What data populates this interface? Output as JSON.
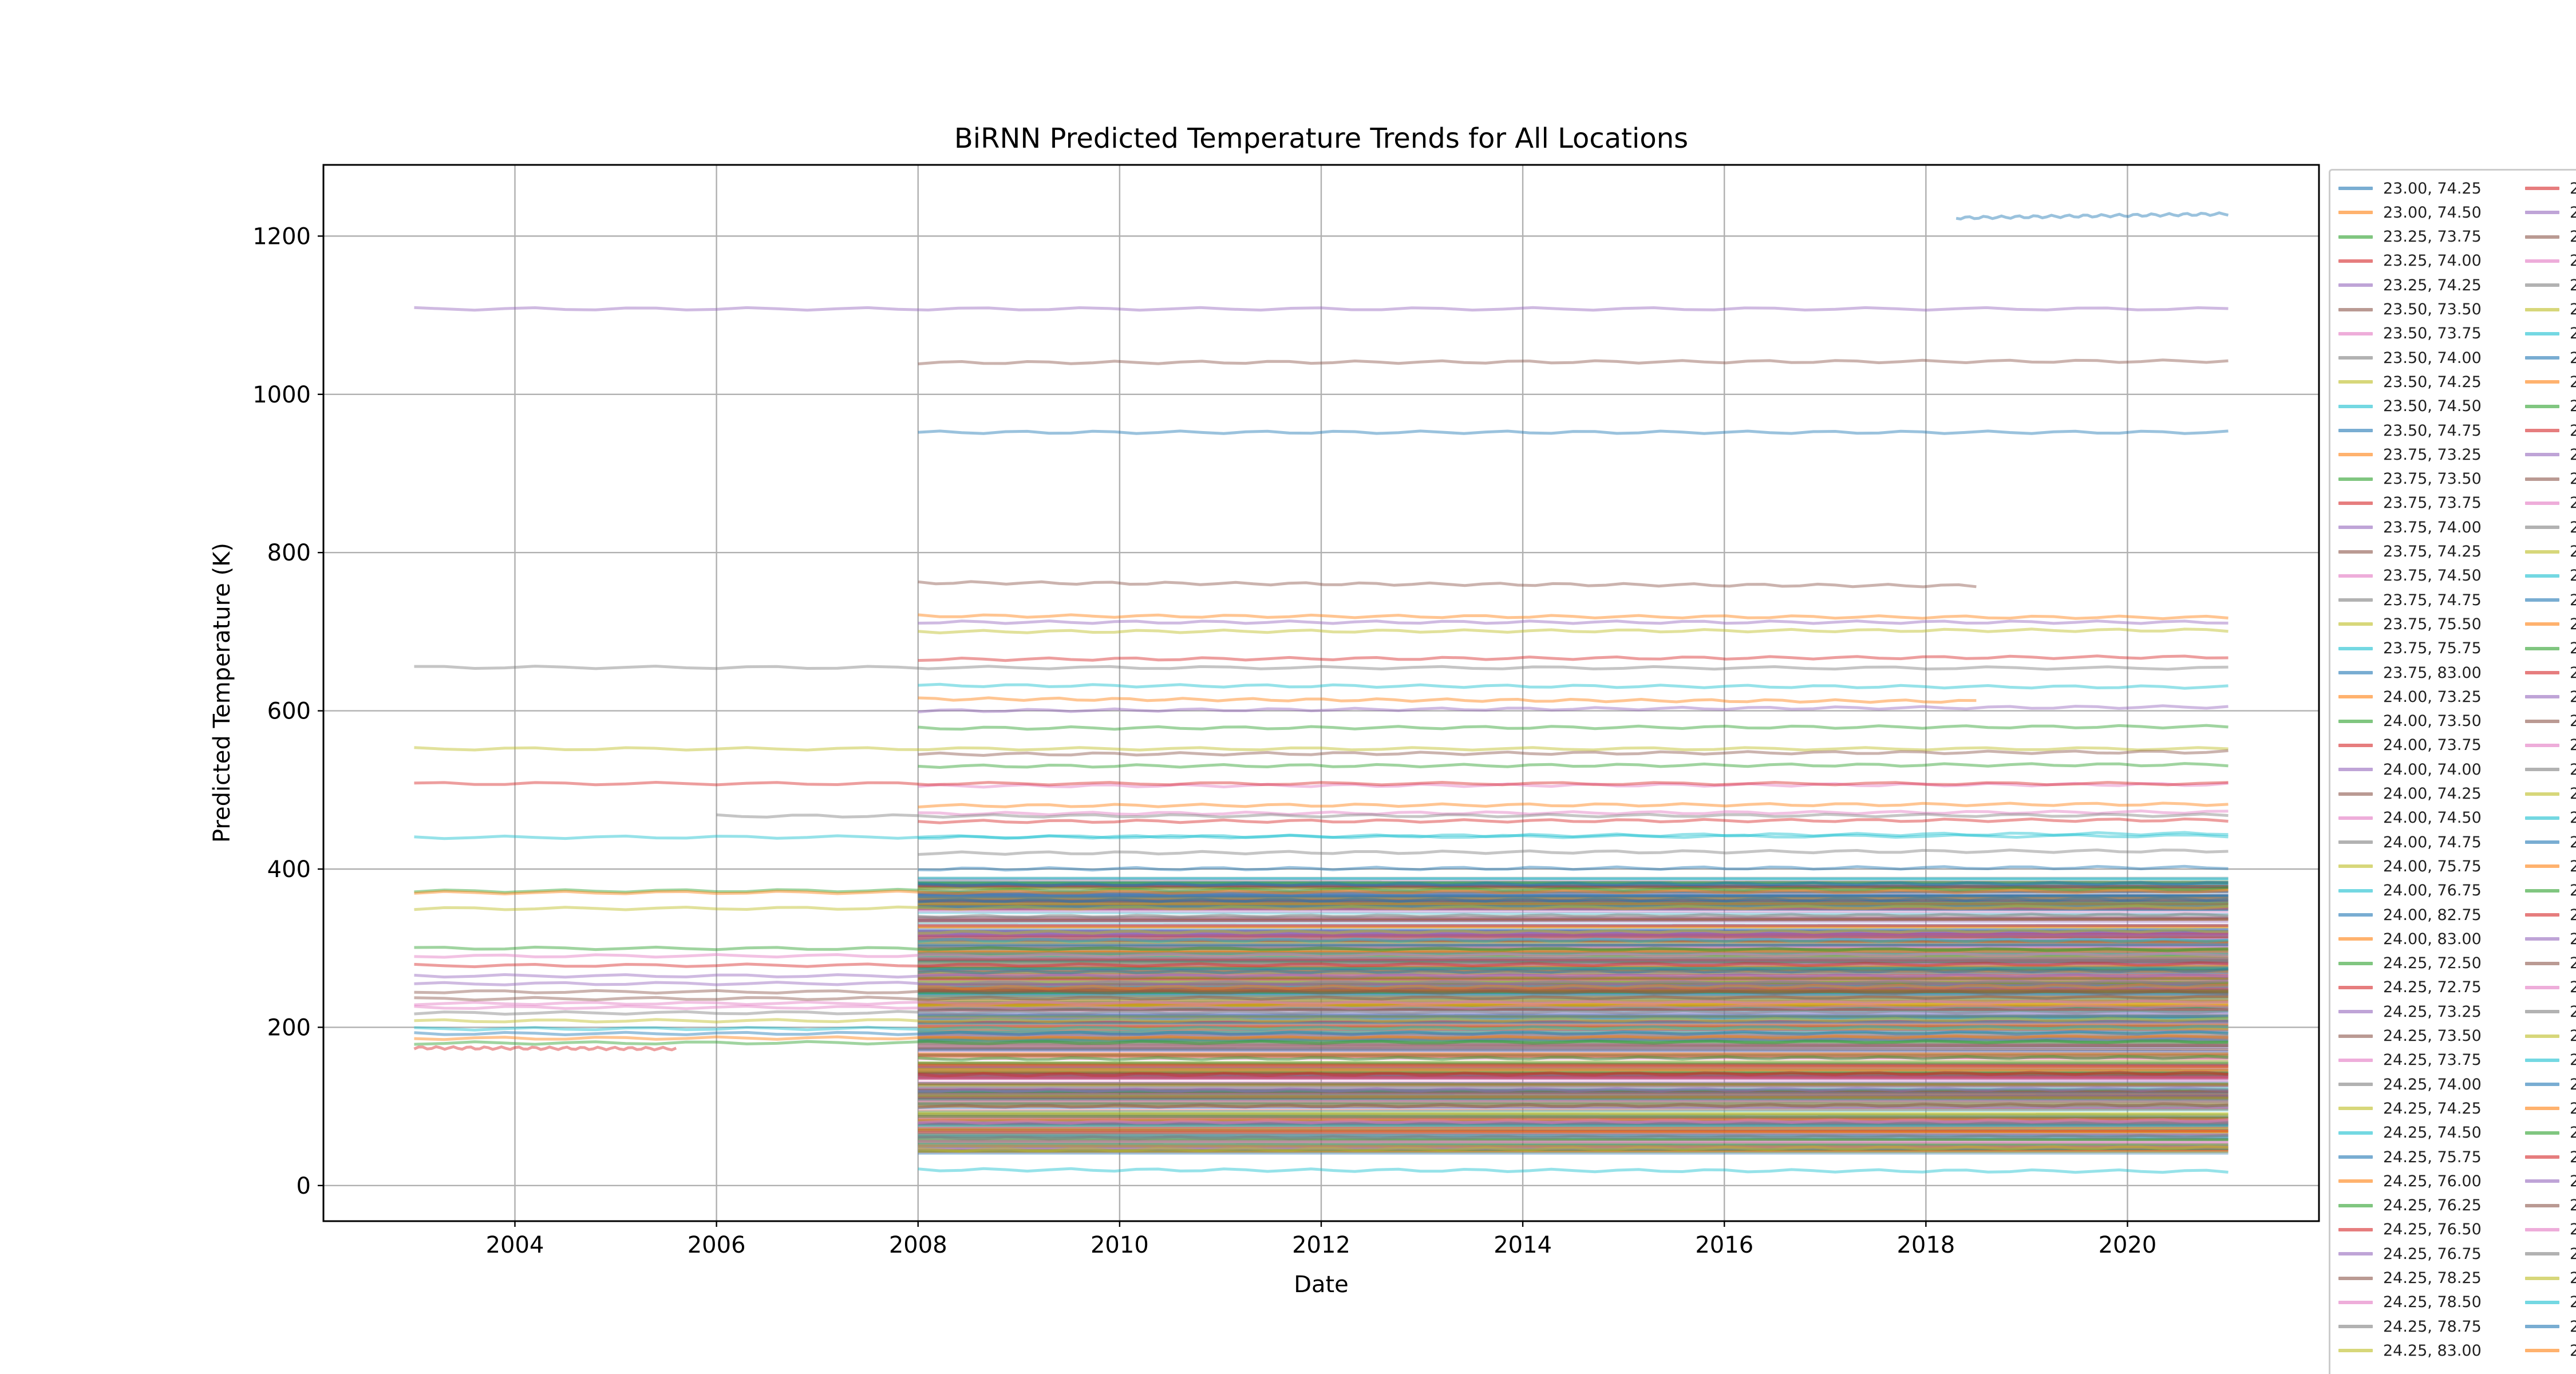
{
  "chart_data": {
    "type": "line",
    "title": "BiRNN Predicted Temperature Trends for All Locations",
    "xlabel": "Date",
    "ylabel": "Predicted Temperature (K)",
    "xlim": [
      2002.1,
      2021.9
    ],
    "ylim": [
      -45,
      1290
    ],
    "x_ticks": [
      {
        "value": 2004,
        "label": "2004"
      },
      {
        "value": 2006,
        "label": "2006"
      },
      {
        "value": 2008,
        "label": "2008"
      },
      {
        "value": 2010,
        "label": "2010"
      },
      {
        "value": 2012,
        "label": "2012"
      },
      {
        "value": 2014,
        "label": "2014"
      },
      {
        "value": 2016,
        "label": "2016"
      },
      {
        "value": 2018,
        "label": "2018"
      },
      {
        "value": 2020,
        "label": "2020"
      }
    ],
    "y_ticks": [
      {
        "value": 0,
        "label": "0"
      },
      {
        "value": 200,
        "label": "200"
      },
      {
        "value": 400,
        "label": "400"
      },
      {
        "value": 600,
        "label": "600"
      },
      {
        "value": 800,
        "label": "800"
      },
      {
        "value": 1000,
        "label": "1000"
      },
      {
        "value": 1200,
        "label": "1200"
      }
    ],
    "grid": true,
    "legend_position": "right, outside plot (clipped)",
    "colors": [
      "#1f77b4",
      "#ff7f0e",
      "#2ca02c",
      "#d62728",
      "#9467bd",
      "#8c564b",
      "#e377c2",
      "#7f7f7f",
      "#bcbd22",
      "#17becf"
    ],
    "series": [
      {
        "x": [
          2008.0,
          2021.0
        ],
        "y": [
          952,
          952
        ]
      },
      {
        "x": [
          2008.0,
          2018.5
        ],
        "y": [
          615,
          612
        ]
      },
      {
        "x": [
          2008.0,
          2021.0
        ],
        "y": [
          578,
          580
        ]
      },
      {
        "x": [
          2008.0,
          2021.0
        ],
        "y": [
          460,
          462
        ]
      },
      {
        "x": [
          2008.0,
          2021.0
        ],
        "y": [
          712,
          712
        ]
      },
      {
        "x": [
          2008.0,
          2021.0
        ],
        "y": [
          1040,
          1042
        ]
      },
      {
        "x": [
          2008.0,
          2021.0
        ],
        "y": [
          505,
          507
        ]
      },
      {
        "x": [
          2003.0,
          2021.0
        ],
        "y": [
          655,
          654
        ]
      },
      {
        "x": [
          2003.0,
          2021.0
        ],
        "y": [
          552,
          552
        ]
      },
      {
        "x": [
          2003.0,
          2021.0
        ],
        "y": [
          440,
          442
        ]
      },
      {
        "x": [
          2008.0,
          2021.0
        ],
        "y": [
          400,
          402
        ]
      },
      {
        "x": [
          2008.0,
          2021.0
        ],
        "y": [
          480,
          482
        ]
      },
      {
        "x": [
          2003.0,
          2021.0
        ],
        "y": [
          372,
          375
        ]
      },
      {
        "x": [
          2003.0,
          2021.0
        ],
        "y": [
          508,
          508
        ]
      },
      {
        "x": [
          2003.0,
          2021.0
        ],
        "y": [
          1108,
          1108
        ]
      },
      {
        "x": [
          2008.0,
          2018.5
        ],
        "y": [
          762,
          758
        ]
      },
      {
        "x": [
          2003.0,
          2021.0
        ],
        "y": [
          290,
          292
        ]
      },
      {
        "x": [
          2008.0,
          2021.0
        ],
        "y": [
          420,
          423
        ]
      },
      {
        "x": [
          2003.0,
          2021.0
        ],
        "y": [
          350,
          352
        ]
      },
      {
        "x": [
          2008.0,
          2021.0
        ],
        "y": [
          632,
          630
        ]
      },
      {
        "x": [
          2008.0,
          2021.0
        ],
        "y": [
          380,
          382
        ]
      },
      {
        "x": [
          2008.0,
          2021.0
        ],
        "y": [
          720,
          718
        ]
      },
      {
        "x": [
          2008.0,
          2021.0
        ],
        "y": [
          530,
          532
        ]
      },
      {
        "x": [
          2008.0,
          2021.0
        ],
        "y": [
          665,
          668
        ]
      },
      {
        "x": [
          2008.0,
          2021.0
        ],
        "y": [
          600,
          605
        ]
      },
      {
        "x": [
          2008.0,
          2021.0
        ],
        "y": [
          545,
          548
        ]
      },
      {
        "x": [
          2008.0,
          2021.0
        ],
        "y": [
          470,
          472
        ]
      },
      {
        "x": [
          2006.0,
          2021.0
        ],
        "y": [
          467,
          468
        ]
      },
      {
        "x": [
          2008.0,
          2021.0
        ],
        "y": [
          700,
          702
        ]
      },
      {
        "x": [
          2008.0,
          2021.0
        ],
        "y": [
          440,
          445
        ]
      },
      {
        "x": [
          2008.0,
          2021.0
        ],
        "y": [
          360,
          362
        ]
      },
      {
        "x": [
          2003.0,
          2021.0
        ],
        "y": [
          370,
          372
        ]
      },
      {
        "x": [
          2003.0,
          2021.0
        ],
        "y": [
          300,
          298
        ]
      },
      {
        "x": [
          2003.0,
          2021.0
        ],
        "y": [
          278,
          280
        ]
      },
      {
        "x": [
          2003.0,
          2021.0
        ],
        "y": [
          265,
          265
        ]
      },
      {
        "x": [
          2003.0,
          2021.0
        ],
        "y": [
          245,
          244
        ]
      },
      {
        "x": [
          2003.0,
          2021.0
        ],
        "y": [
          230,
          232
        ]
      },
      {
        "x": [
          2003.0,
          2021.0
        ],
        "y": [
          218,
          220
        ]
      },
      {
        "x": [
          2003.0,
          2021.0
        ],
        "y": [
          208,
          210
        ]
      },
      {
        "x": [
          2003.0,
          2021.0
        ],
        "y": [
          198,
          200
        ]
      },
      {
        "x": [
          2003.0,
          2021.0
        ],
        "y": [
          192,
          193
        ]
      },
      {
        "x": [
          2003.0,
          2021.0
        ],
        "y": [
          186,
          188
        ]
      },
      {
        "x": [
          2003.0,
          2021.0
        ],
        "y": [
          180,
          182
        ]
      },
      {
        "x": [
          2003.0,
          2005.6
        ],
        "y": [
          174,
          173
        ]
      },
      {
        "x": [
          2003.0,
          2021.0
        ],
        "y": [
          255,
          257
        ]
      },
      {
        "x": [
          2003.0,
          2021.0
        ],
        "y": [
          236,
          238
        ]
      },
      {
        "x": [
          2003.0,
          2021.0
        ],
        "y": [
          225,
          226
        ]
      },
      {
        "x": [
          2008.0,
          2021.0
        ],
        "y": [
          340,
          342
        ]
      },
      {
        "x": [
          2008.0,
          2021.0
        ],
        "y": [
          320,
          322
        ]
      },
      {
        "x": [
          2008.0,
          2021.0
        ],
        "y": [
          310,
          310
        ]
      },
      {
        "x": [
          2008.0,
          2021.0
        ],
        "y": [
          270,
          272
        ]
      },
      {
        "x": [
          2008.0,
          2021.0
        ],
        "y": [
          250,
          252
        ]
      },
      {
        "x": [
          2008.0,
          2021.0
        ],
        "y": [
          160,
          162
        ]
      },
      {
        "x": [
          2008.0,
          2021.0
        ],
        "y": [
          140,
          142
        ]
      },
      {
        "x": [
          2008.0,
          2021.0
        ],
        "y": [
          120,
          122
        ]
      },
      {
        "x": [
          2008.0,
          2021.0
        ],
        "y": [
          100,
          102
        ]
      },
      {
        "x": [
          2008.0,
          2021.0
        ],
        "y": [
          80,
          82
        ]
      },
      {
        "x": [
          2008.0,
          2021.0
        ],
        "y": [
          60,
          62
        ]
      },
      {
        "x": [
          2008.0,
          2021.0
        ],
        "y": [
          45,
          48
        ]
      },
      {
        "x": [
          2008.0,
          2021.0
        ],
        "y": [
          20,
          18
        ]
      },
      {
        "x": [
          2018.3,
          2021.0
        ],
        "y": [
          1223,
          1228
        ]
      }
    ]
  },
  "legend": {
    "items": [
      {
        "label": "23.00, 74.25",
        "color": "#1f77b4"
      },
      {
        "label": "23.00, 74.50",
        "color": "#ff7f0e"
      },
      {
        "label": "23.25, 73.75",
        "color": "#2ca02c"
      },
      {
        "label": "23.25, 74.00",
        "color": "#d62728"
      },
      {
        "label": "23.25, 74.25",
        "color": "#9467bd"
      },
      {
        "label": "23.50, 73.50",
        "color": "#8c564b"
      },
      {
        "label": "23.50, 73.75",
        "color": "#e377c2"
      },
      {
        "label": "23.50, 74.00",
        "color": "#7f7f7f"
      },
      {
        "label": "23.50, 74.25",
        "color": "#bcbd22"
      },
      {
        "label": "23.50, 74.50",
        "color": "#17becf"
      },
      {
        "label": "23.50, 74.75",
        "color": "#1f77b4"
      },
      {
        "label": "23.75, 73.25",
        "color": "#ff7f0e"
      },
      {
        "label": "23.75, 73.50",
        "color": "#2ca02c"
      },
      {
        "label": "23.75, 73.75",
        "color": "#d62728"
      },
      {
        "label": "23.75, 74.00",
        "color": "#9467bd"
      },
      {
        "label": "23.75, 74.25",
        "color": "#8c564b"
      },
      {
        "label": "23.75, 74.50",
        "color": "#e377c2"
      },
      {
        "label": "23.75, 74.75",
        "color": "#7f7f7f"
      },
      {
        "label": "23.75, 75.50",
        "color": "#bcbd22"
      },
      {
        "label": "23.75, 75.75",
        "color": "#17becf"
      },
      {
        "label": "23.75, 83.00",
        "color": "#1f77b4"
      },
      {
        "label": "24.00, 73.25",
        "color": "#ff7f0e"
      },
      {
        "label": "24.00, 73.50",
        "color": "#2ca02c"
      },
      {
        "label": "24.00, 73.75",
        "color": "#d62728"
      },
      {
        "label": "24.00, 74.00",
        "color": "#9467bd"
      },
      {
        "label": "24.00, 74.25",
        "color": "#8c564b"
      },
      {
        "label": "24.00, 74.50",
        "color": "#e377c2"
      },
      {
        "label": "24.00, 74.75",
        "color": "#7f7f7f"
      },
      {
        "label": "24.00, 75.75",
        "color": "#bcbd22"
      },
      {
        "label": "24.00, 76.75",
        "color": "#17becf"
      },
      {
        "label": "24.00, 82.75",
        "color": "#1f77b4"
      },
      {
        "label": "24.00, 83.00",
        "color": "#ff7f0e"
      },
      {
        "label": "24.25, 72.50",
        "color": "#2ca02c"
      },
      {
        "label": "24.25, 72.75",
        "color": "#d62728"
      },
      {
        "label": "24.25, 73.25",
        "color": "#9467bd"
      },
      {
        "label": "24.25, 73.50",
        "color": "#8c564b"
      },
      {
        "label": "24.25, 73.75",
        "color": "#e377c2"
      },
      {
        "label": "24.25, 74.00",
        "color": "#7f7f7f"
      },
      {
        "label": "24.25, 74.25",
        "color": "#bcbd22"
      },
      {
        "label": "24.25, 74.50",
        "color": "#17becf"
      },
      {
        "label": "24.25, 75.75",
        "color": "#1f77b4"
      },
      {
        "label": "24.25, 76.00",
        "color": "#ff7f0e"
      },
      {
        "label": "24.25, 76.25",
        "color": "#2ca02c"
      },
      {
        "label": "24.25, 76.50",
        "color": "#d62728"
      },
      {
        "label": "24.25, 76.75",
        "color": "#9467bd"
      },
      {
        "label": "24.25, 78.25",
        "color": "#8c564b"
      },
      {
        "label": "24.25, 78.50",
        "color": "#e377c2"
      },
      {
        "label": "24.25, 78.75",
        "color": "#7f7f7f"
      },
      {
        "label": "24.25, 83.00",
        "color": "#bcbd22"
      }
    ],
    "second_column_label": "2"
  }
}
